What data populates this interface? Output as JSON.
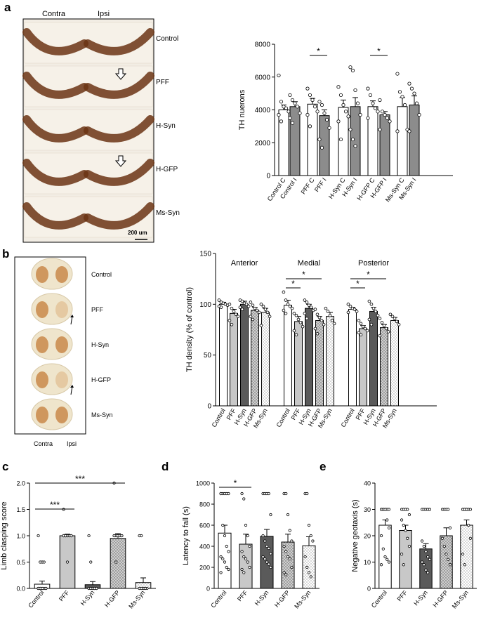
{
  "panels": {
    "a": {
      "letter": "a",
      "photo_labels": {
        "left": "Contra",
        "right": "Ipsi"
      },
      "rows": [
        "Control",
        "PFF",
        "H-Syn",
        "H-GFP",
        "Ms-Syn"
      ],
      "scale_bar": "200 um"
    },
    "b": {
      "letter": "b",
      "photo_labels": {
        "left": "Contra",
        "right": "Ipsi"
      },
      "rows": [
        "Control",
        "PFF",
        "H-Syn",
        "H-GFP",
        "Ms-Syn"
      ]
    },
    "c": {
      "letter": "c"
    },
    "d": {
      "letter": "d"
    },
    "e": {
      "letter": "e"
    }
  },
  "colors": {
    "white_bar": "#ffffff",
    "grey_bar": "#8c8c8c",
    "light_bar": "#c8c8c8",
    "dark_bar": "#5a5a5a",
    "photo_bg": "#f2ede4",
    "tissue": "#6b3414",
    "stain_b": "#c98a4a"
  },
  "chart_data": [
    {
      "id": "a",
      "type": "bar",
      "title": "",
      "ylabel": "TH nuerons",
      "xlabel": "",
      "ylim": [
        0,
        8000
      ],
      "yticks": [
        0,
        2000,
        4000,
        6000,
        8000
      ],
      "categories": [
        "Control C",
        "Control I",
        "PFF C",
        "PFF I",
        "H-Syn C",
        "H-Syn I",
        "H-GFP C",
        "H-GFP I",
        "Ms-Syn C",
        "Ms-Syn I"
      ],
      "values": [
        4000,
        4200,
        4350,
        3650,
        4150,
        4200,
        4200,
        3700,
        4200,
        4300
      ],
      "errors": [
        300,
        300,
        350,
        350,
        450,
        550,
        350,
        200,
        550,
        550
      ],
      "fills": [
        "white",
        "grey",
        "white",
        "grey",
        "white",
        "grey",
        "white",
        "grey",
        "white",
        "grey"
      ],
      "points": [
        [
          6100,
          4500,
          4200,
          4100,
          3900,
          3700,
          3300
        ],
        [
          4900,
          4600,
          4400,
          4200,
          3800,
          3500,
          3200
        ],
        [
          5300,
          4900,
          4600,
          4200,
          3900,
          3700,
          3000
        ],
        [
          4500,
          4300,
          3800,
          3400,
          2900,
          2200,
          1700
        ],
        [
          5400,
          4900,
          4300,
          3900,
          3600,
          3300,
          2200
        ],
        [
          6600,
          6400,
          5200,
          4400,
          3700,
          2800,
          2200,
          1800
        ],
        [
          5300,
          4900,
          4400,
          4100,
          3900,
          3500
        ],
        [
          4600,
          3900,
          3700,
          3500,
          3300,
          2800
        ],
        [
          6200,
          5100,
          4800,
          4300,
          2800,
          2700
        ],
        [
          5600,
          5300,
          5000,
          4400,
          3700,
          2700
        ]
      ],
      "significance": [
        {
          "from": 2,
          "to": 3,
          "label": "*"
        },
        {
          "from": 6,
          "to": 7,
          "label": "*"
        }
      ]
    },
    {
      "id": "b",
      "type": "bar",
      "title": "",
      "ylabel": "TH density (% of control)",
      "ylim": [
        0,
        150
      ],
      "yticks": [
        0,
        50,
        100,
        150
      ],
      "groups": [
        "Anterior",
        "Medial",
        "Posterior"
      ],
      "categories": [
        "Control",
        "PFF",
        "H-Syn",
        "H-GFP",
        "Ms-Syn"
      ],
      "fills": [
        "white",
        "light",
        "dark",
        "dots",
        "dots-white"
      ],
      "series": [
        {
          "name": "Anterior",
          "values": [
            100,
            91,
            100,
            94,
            92
          ],
          "errors": [
            2,
            4,
            3,
            3,
            4
          ],
          "points": [
            [
              104,
              102,
              101,
              100,
              99,
              98,
              97
            ],
            [
              100,
              96,
              93,
              90,
              88,
              84,
              80
            ],
            [
              104,
              103,
              101,
              100,
              98,
              97,
              95
            ],
            [
              102,
              99,
              96,
              94,
              92,
              88,
              85
            ],
            [
              100,
              98,
              95,
              92,
              88,
              79
            ]
          ]
        },
        {
          "name": "Medial",
          "values": [
            99,
            83,
            96,
            84,
            88
          ],
          "errors": [
            5,
            5,
            4,
            4,
            4
          ],
          "points": [
            [
              112,
              104,
              100,
              98,
              96,
              94,
              91
            ],
            [
              91,
              89,
              85,
              82,
              78,
              74,
              70
            ],
            [
              104,
              102,
              99,
              97,
              94,
              91,
              86
            ],
            [
              95,
              90,
              87,
              84,
              80,
              76,
              71
            ],
            [
              96,
              93,
              89,
              84,
              81
            ]
          ]
        },
        {
          "name": "Posterior",
          "values": [
            95,
            76,
            93,
            77,
            84
          ],
          "errors": [
            2,
            3,
            4,
            3,
            3
          ],
          "points": [
            [
              100,
              98,
              96,
              95,
              93,
              92
            ],
            [
              84,
              81,
              78,
              76,
              74,
              72,
              70
            ],
            [
              103,
              100,
              96,
              93,
              89,
              85,
              80
            ],
            [
              86,
              82,
              79,
              76,
              73,
              69
            ],
            [
              90,
              88,
              86,
              83,
              80
            ]
          ]
        }
      ],
      "significance": [
        {
          "group": 1,
          "from": 0,
          "to": 1,
          "label": "*"
        },
        {
          "group": 1,
          "from": 0,
          "to": 3,
          "label": "*"
        },
        {
          "group": 2,
          "from": 0,
          "to": 1,
          "label": "*"
        },
        {
          "group": 2,
          "from": 0,
          "to": 3,
          "label": "*"
        }
      ]
    },
    {
      "id": "c",
      "type": "bar",
      "ylabel": "Limb clasping score",
      "ylim": [
        0,
        2.0
      ],
      "yticks": [
        0.0,
        0.5,
        1.0,
        1.5,
        2.0
      ],
      "categories": [
        "Control",
        "PFF",
        "H-Syn",
        "H-GFP",
        "Ms-Syn"
      ],
      "values": [
        0.08,
        1.0,
        0.07,
        0.95,
        0.11
      ],
      "errors": [
        0.06,
        0.03,
        0.06,
        0.09,
        0.09
      ],
      "fills": [
        "white",
        "light",
        "dark",
        "dots",
        "dots-white"
      ],
      "points": [
        [
          1.0,
          0.5,
          0.5,
          0.5,
          0,
          0,
          0,
          0,
          0,
          0,
          0,
          0,
          0
        ],
        [
          1.5,
          1,
          1,
          1,
          1,
          1,
          1,
          1,
          1,
          1,
          1,
          1,
          0.5
        ],
        [
          1.0,
          0.5,
          0,
          0,
          0,
          0,
          0,
          0,
          0,
          0,
          0,
          0
        ],
        [
          2.0,
          1,
          1,
          1,
          1,
          1,
          1,
          1,
          1,
          1,
          1,
          0.5
        ],
        [
          1.0,
          1.0,
          0,
          0,
          0,
          0,
          0,
          0,
          0
        ]
      ],
      "significance": [
        {
          "from": 0,
          "to": 1,
          "label": "***"
        },
        {
          "from": 0,
          "to": 3,
          "label": "***"
        }
      ]
    },
    {
      "id": "d",
      "type": "bar",
      "ylabel": "Latency to fall (s)",
      "ylim": [
        0,
        1000
      ],
      "yticks": [
        0,
        200,
        400,
        600,
        800,
        1000
      ],
      "categories": [
        "Control",
        "PFF",
        "H-Syn",
        "H-GFP",
        "Ms-Syn"
      ],
      "values": [
        525,
        420,
        495,
        440,
        405
      ],
      "errors": [
        75,
        95,
        65,
        75,
        85
      ],
      "fills": [
        "white",
        "light",
        "dark",
        "dots",
        "dots-white"
      ],
      "points": [
        [
          900,
          900,
          900,
          900,
          900,
          900,
          600,
          500,
          400,
          350,
          300,
          280,
          250,
          200,
          180,
          150
        ],
        [
          900,
          850,
          600,
          500,
          400,
          350,
          300,
          280,
          250,
          200,
          180,
          150
        ],
        [
          900,
          900,
          900,
          900,
          700,
          500,
          450,
          400,
          380,
          330,
          300,
          280,
          250,
          230,
          200
        ],
        [
          900,
          900,
          700,
          550,
          450,
          400,
          350,
          300,
          280,
          200,
          150,
          130
        ],
        [
          900,
          900,
          600,
          500,
          450,
          300,
          200,
          150,
          110
        ]
      ],
      "significance": [
        {
          "from": 0,
          "to": 1,
          "label": "*"
        }
      ]
    },
    {
      "id": "e",
      "type": "bar",
      "ylabel": "Negative geotaxis (s)",
      "ylim": [
        0,
        40
      ],
      "yticks": [
        0,
        10,
        20,
        30,
        40
      ],
      "categories": [
        "Control",
        "PFF",
        "H-Syn",
        "H-GFP",
        "Ms-Syn"
      ],
      "values": [
        24,
        22,
        15,
        20,
        24
      ],
      "errors": [
        2,
        2,
        2,
        3,
        2
      ],
      "fills": [
        "white",
        "light",
        "dark",
        "dots",
        "dots-white"
      ],
      "points": [
        [
          30,
          30,
          30,
          30,
          30,
          30,
          30,
          30,
          26,
          23,
          20,
          15,
          12,
          11,
          10,
          9
        ],
        [
          30,
          30,
          30,
          30,
          28,
          26,
          24,
          22,
          19,
          16,
          13,
          9
        ],
        [
          30,
          30,
          30,
          30,
          30,
          18,
          16,
          14,
          12,
          11,
          10,
          9,
          7,
          6
        ],
        [
          30,
          30,
          30,
          30,
          23,
          19,
          16,
          13,
          11,
          9
        ],
        [
          30,
          30,
          30,
          30,
          30,
          30,
          30,
          30,
          24,
          19,
          13,
          9
        ]
      ],
      "significance": []
    }
  ]
}
